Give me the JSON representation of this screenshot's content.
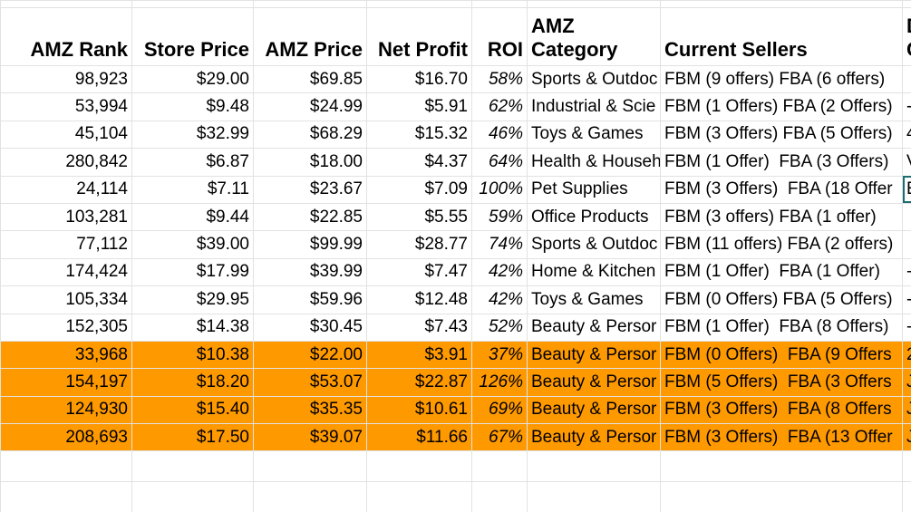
{
  "table": {
    "header": [
      "AMZ Rank",
      "Store Price",
      "AMZ Price",
      "Net Profit",
      "ROI",
      "AMZ Category",
      "Current Sellers",
      "D C"
    ],
    "align": [
      "right",
      "right",
      "right",
      "right",
      "right",
      "left",
      "left",
      "left"
    ],
    "highlight_rows": [
      10,
      11,
      12,
      13
    ],
    "highlight_color": "#ff9900",
    "rows": [
      [
        "98,923",
        "$29.00",
        "$69.85",
        "$16.70",
        "58%",
        "Sports & Outdoc",
        "FBM (9 offers) FBA (6 offers)",
        null
      ],
      [
        "53,994",
        "$9.48",
        "$24.99",
        "$5.91",
        "62%",
        "Industrial & Scie",
        "FBM (1 Offers) FBA (2 Offers)",
        "-"
      ],
      [
        "45,104",
        "$32.99",
        "$68.29",
        "$15.32",
        "46%",
        "Toys & Games",
        "FBM (3 Offers) FBA (5 Offers)",
        "4"
      ],
      [
        "280,842",
        "$6.87",
        "$18.00",
        "$4.37",
        "64%",
        "Health & Househ",
        "FBM (1 Offer)  FBA (3 Offers)",
        "V"
      ],
      [
        "24,114",
        "$7.11",
        "$23.67",
        "$7.09",
        "100%",
        "Pet Supplies",
        "FBM (3 Offers)  FBA (18 Offer",
        "E"
      ],
      [
        "103,281",
        "$9.44",
        "$22.85",
        "$5.55",
        "59%",
        "Office Products",
        "FBM (3 offers) FBA (1 offer)",
        null
      ],
      [
        "77,112",
        "$39.00",
        "$99.99",
        "$28.77",
        "74%",
        "Sports & Outdoc",
        "FBM (11 offers) FBA (2 offers)",
        null
      ],
      [
        "174,424",
        "$17.99",
        "$39.99",
        "$7.47",
        "42%",
        "Home & Kitchen",
        "FBM (1 Offer)  FBA (1 Offer)",
        "-"
      ],
      [
        "105,334",
        "$29.95",
        "$59.96",
        "$12.48",
        "42%",
        "Toys & Games",
        "FBM (0 Offers) FBA (5 Offers)",
        "-"
      ],
      [
        "152,305",
        "$14.38",
        "$30.45",
        "$7.43",
        "52%",
        "Beauty & Persor",
        "FBM (1 Offer)  FBA (8 Offers)",
        "-"
      ],
      [
        "33,968",
        "$10.38",
        "$22.00",
        "$3.91",
        "37%",
        "Beauty & Persor",
        "FBM (0 Offers)  FBA (9 Offers",
        "2"
      ],
      [
        "154,197",
        "$18.20",
        "$53.07",
        "$22.87",
        "126%",
        "Beauty & Persor",
        "FBM (5 Offers)  FBA (3 Offers",
        "J"
      ],
      [
        "124,930",
        "$15.40",
        "$35.35",
        "$10.61",
        "69%",
        "Beauty & Persor",
        "FBM (3 Offers)  FBA (8 Offers",
        "J"
      ],
      [
        "208,693",
        "$17.50",
        "$39.07",
        "$11.66",
        "67%",
        "Beauty & Persor",
        "FBM (3 Offers)  FBA (13 Offer",
        "J"
      ]
    ]
  }
}
